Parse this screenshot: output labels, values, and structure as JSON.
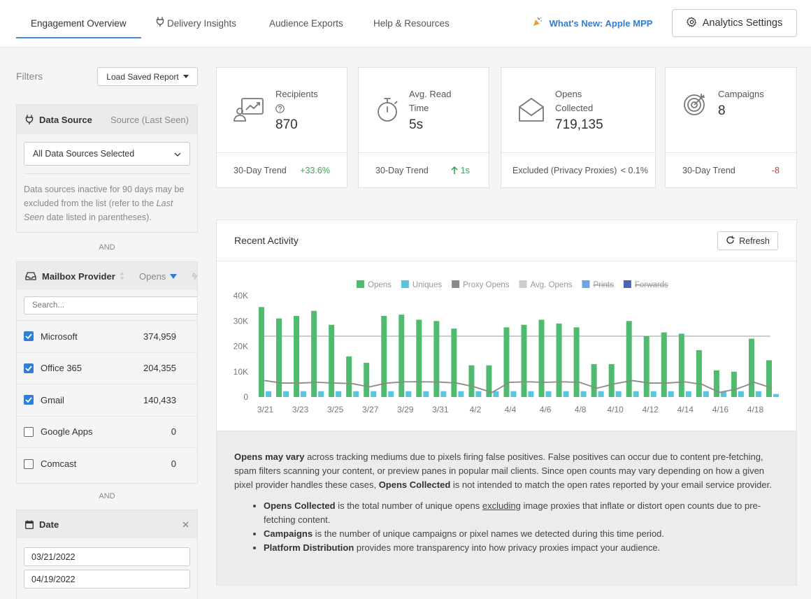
{
  "nav": {
    "tabs": [
      {
        "label": "Engagement Overview",
        "active": true
      },
      {
        "label": "Delivery Insights",
        "icon": "plug-icon"
      },
      {
        "label": "Audience Exports"
      },
      {
        "label": "Help & Resources"
      }
    ],
    "whats_new": "What's New: Apple MPP",
    "settings_label": "Analytics Settings"
  },
  "sidebar": {
    "filters_label": "Filters",
    "load_report_label": "Load Saved Report",
    "data_source": {
      "title": "Data Source",
      "right_label": "Source (Last Seen)",
      "selected": "All Data Sources Selected",
      "note_prefix": "Data sources inactive for 90 days may be excluded from the list (refer to the ",
      "note_em": "Last Seen",
      "note_suffix": " date listed in parentheses)."
    },
    "and_label_1": "AND",
    "mailbox": {
      "title": "Mailbox Provider",
      "opens_label": "Opens",
      "pct_label": "%",
      "search_placeholder": "Search...",
      "rows": [
        {
          "name": "Microsoft",
          "value": "374,959",
          "checked": true
        },
        {
          "name": "Office 365",
          "value": "204,355",
          "checked": true
        },
        {
          "name": "Gmail",
          "value": "140,433",
          "checked": true
        },
        {
          "name": "Google Apps",
          "value": "0",
          "checked": false
        },
        {
          "name": "Comcast",
          "value": "0",
          "checked": false
        }
      ]
    },
    "and_label_2": "AND",
    "date": {
      "title": "Date",
      "start": "03/21/2022",
      "end": "04/19/2022"
    }
  },
  "cards": [
    {
      "label_line1": "Recipients",
      "value": "870",
      "foot_label": "30-Day Trend",
      "foot_value": "+33.6%",
      "icon": "recipients-icon"
    },
    {
      "label_line1": "Avg. Read",
      "label_line2": "Time",
      "value": "5s",
      "foot_label": "30-Day Trend",
      "foot_value": "1s",
      "icon": "stopwatch-icon"
    },
    {
      "label_line1": "Opens",
      "label_line2": "Collected",
      "value": "719,135",
      "foot_label": "Excluded (Privacy Proxies)",
      "foot_value": "< 0.1%",
      "icon": "envelope-open-icon"
    },
    {
      "label_line1": "Campaigns",
      "value": "8",
      "foot_label": "30-Day Trend",
      "foot_value": "-8",
      "icon": "target-icon"
    }
  ],
  "activity": {
    "title": "Recent Activity",
    "refresh_label": "Refresh"
  },
  "chart_data": {
    "type": "bar",
    "ylim": [
      0,
      40000
    ],
    "yticks": [
      "0",
      "10K",
      "20K",
      "30K",
      "40K"
    ],
    "x_labels": [
      "3/21",
      "3/23",
      "3/25",
      "3/27",
      "3/29",
      "3/31",
      "4/2",
      "4/4",
      "4/6",
      "4/8",
      "4/10",
      "4/12",
      "4/14",
      "4/16",
      "4/18"
    ],
    "legend": [
      {
        "name": "Opens",
        "color": "#4fbb6e",
        "disabled": false
      },
      {
        "name": "Uniques",
        "color": "#5bc4e0",
        "disabled": false
      },
      {
        "name": "Proxy Opens",
        "color": "#8a8a8a",
        "disabled": false
      },
      {
        "name": "Avg. Opens",
        "color": "#cccccc",
        "disabled": false
      },
      {
        "name": "Prints",
        "color": "#6fa3e8",
        "disabled": true
      },
      {
        "name": "Forwards",
        "color": "#4a63b5",
        "disabled": true
      }
    ],
    "series": [
      {
        "name": "Opens",
        "values": [
          35500,
          31000,
          32000,
          34000,
          28500,
          16000,
          13500,
          32000,
          32500,
          30500,
          30000,
          27000,
          12500,
          12500,
          27500,
          28500,
          30500,
          29000,
          27500,
          13000,
          13000,
          30000,
          24000,
          25500,
          25000,
          18500,
          10500,
          10000,
          23000,
          14500
        ]
      },
      {
        "name": "Uniques",
        "values": [
          2300,
          2300,
          2300,
          2300,
          2300,
          2300,
          2300,
          2300,
          2300,
          2300,
          2300,
          2300,
          2300,
          2300,
          2300,
          2300,
          2300,
          2300,
          2300,
          2300,
          2300,
          2300,
          2300,
          2300,
          2300,
          2300,
          2300,
          2300,
          2300,
          1200
        ]
      },
      {
        "name": "Proxy Opens",
        "values": [
          6500,
          5500,
          5500,
          5800,
          5500,
          5300,
          4000,
          5500,
          6000,
          6000,
          5900,
          5500,
          4000,
          1800,
          5800,
          6000,
          5800,
          6000,
          5800,
          3500,
          5200,
          6500,
          5500,
          5500,
          6000,
          5000,
          1800,
          3200,
          5800,
          3500
        ]
      },
      {
        "name": "Avg. Opens",
        "values": [
          24000,
          24000,
          24000,
          24000,
          24000,
          24000,
          24000,
          24000,
          24000,
          24000,
          24000,
          24000,
          24000,
          24000,
          24000,
          24000,
          24000,
          24000,
          24000,
          24000,
          24000,
          24000,
          24000,
          24000,
          24000,
          24000,
          24000,
          24000,
          24000,
          24000
        ]
      }
    ]
  },
  "notes": {
    "p_b1": "Opens may vary",
    "p_t1": " across tracking mediums due to pixels firing false positives. False positives can occur due to content pre-fetching, spam filters scanning your content, or preview panes in popular mail clients. Since open counts may vary depending on how a given pixel provider handles these cases, ",
    "p_b2": "Opens Collected",
    "p_t2": " is not intended to match the open rates reported by your email service provider.",
    "li1_b": "Opens Collected",
    "li1_t1": " is the total number of unique opens ",
    "li1_u": "excluding",
    "li1_t2": " image proxies that inflate or distort open counts due to pre-fetching content.",
    "li2_b": "Campaigns",
    "li2_t": " is the number of unique campaigns or pixel names we detected during this time period.",
    "li3_b": "Platform Distribution",
    "li3_t": " provides more transparency into how privacy proxies impact your audience."
  }
}
